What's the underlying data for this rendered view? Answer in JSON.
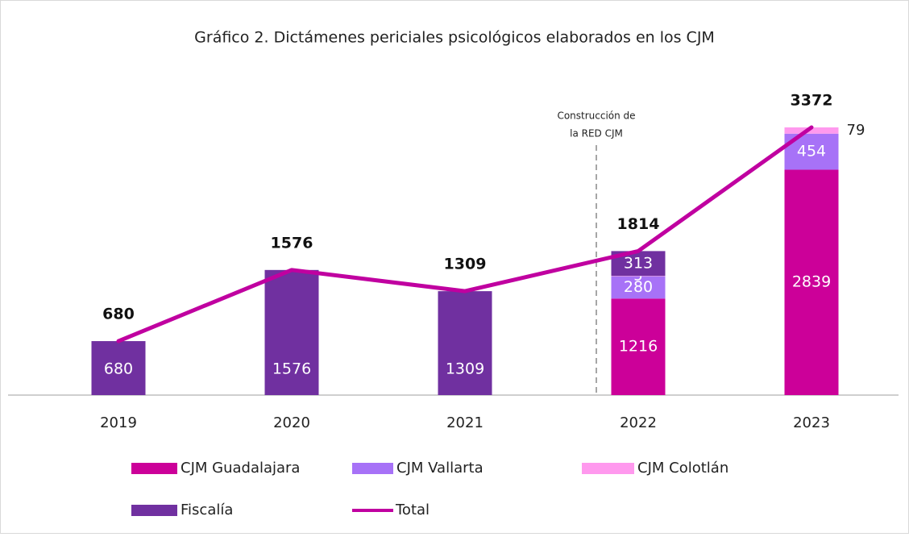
{
  "chart_data": {
    "type": "stacked-bar-line",
    "title": "Gráfico 2. Dictámenes periciales psicológicos elaborados en los CJM",
    "annotation": [
      "Construcción de",
      "la RED CJM"
    ],
    "categories": [
      "2019",
      "2020",
      "2021",
      "2022",
      "2023"
    ],
    "series": [
      {
        "name": "CJM Guadalajara",
        "color": "#cc0099",
        "values": [
          null,
          null,
          null,
          1216,
          2839
        ]
      },
      {
        "name": "CJM Vallarta",
        "color": "#a772f7",
        "values": [
          null,
          null,
          null,
          280,
          454
        ]
      },
      {
        "name": "CJM Colotlán",
        "color": "#ff99ee",
        "values": [
          null,
          null,
          null,
          5,
          79
        ]
      },
      {
        "name": "Fiscalía",
        "color": "#7030a0",
        "values": [
          680,
          1576,
          1309,
          313,
          null
        ]
      }
    ],
    "total": {
      "name": "Total",
      "color": "#c000a0",
      "values": [
        680,
        1576,
        1309,
        1814,
        3372
      ]
    },
    "grid": false
  }
}
